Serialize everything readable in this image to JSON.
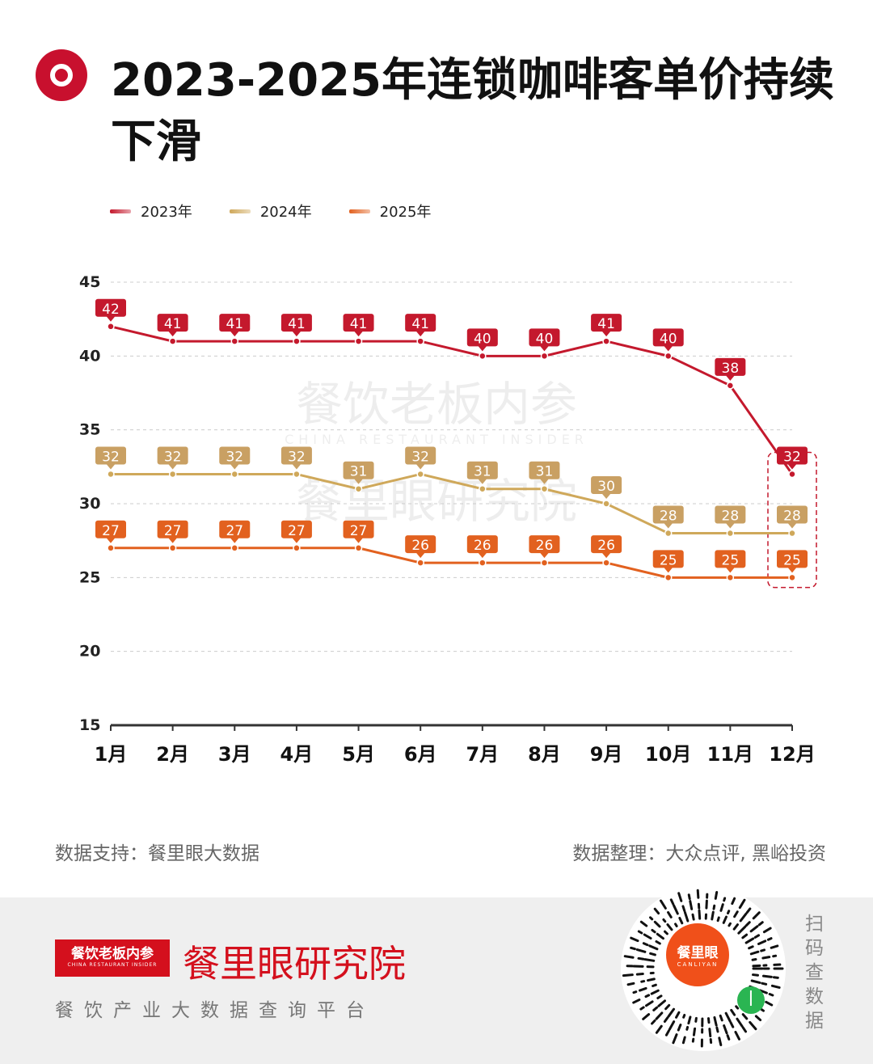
{
  "header": {
    "title": "2023-2025年连锁咖啡客单价持续下滑"
  },
  "watermark": {
    "line1": "餐饮老板内参",
    "line2": "CHINA RESTAURANT INSIDER",
    "line3": "餐里眼研究院"
  },
  "chart_data": {
    "type": "line",
    "title": "2023-2025年连锁咖啡客单价持续下滑",
    "categories": [
      "1月",
      "2月",
      "3月",
      "4月",
      "5月",
      "6月",
      "7月",
      "8月",
      "9月",
      "10月",
      "11月",
      "12月"
    ],
    "ylim": [
      15,
      45
    ],
    "yticks": [
      15,
      20,
      25,
      30,
      35,
      40,
      45
    ],
    "grid": true,
    "legend_position": "top-left",
    "series": [
      {
        "name": "2023年",
        "color": "#c4192d",
        "label_color": "#c4192d",
        "values": [
          42,
          41,
          41,
          41,
          41,
          41,
          40,
          40,
          41,
          40,
          38,
          32
        ]
      },
      {
        "name": "2024年",
        "color": "#cfa85a",
        "label_color": "#c9a063",
        "values": [
          32,
          32,
          32,
          32,
          31,
          32,
          31,
          31,
          30,
          28,
          28,
          28
        ]
      },
      {
        "name": "2025年",
        "color": "#e2611f",
        "label_color": "#e2611f",
        "values": [
          27,
          27,
          27,
          27,
          27,
          26,
          26,
          26,
          26,
          25,
          25,
          25
        ]
      }
    ],
    "highlight": "12月"
  },
  "footer": {
    "source_left": "数据支持：餐里眼大数据",
    "source_right": "数据整理：大众点评, 黑峪投资",
    "brand_box": "餐饮老板内参",
    "brand_box_en": "CHINA RESTAURANT INSIDER",
    "brand_name": "餐里眼研究院",
    "brand_sub": "餐饮产业大数据查询平台",
    "qr_brand": "餐里眼",
    "qr_brand_en": "CANLIYAN",
    "scan_text": "扫码查数据"
  }
}
